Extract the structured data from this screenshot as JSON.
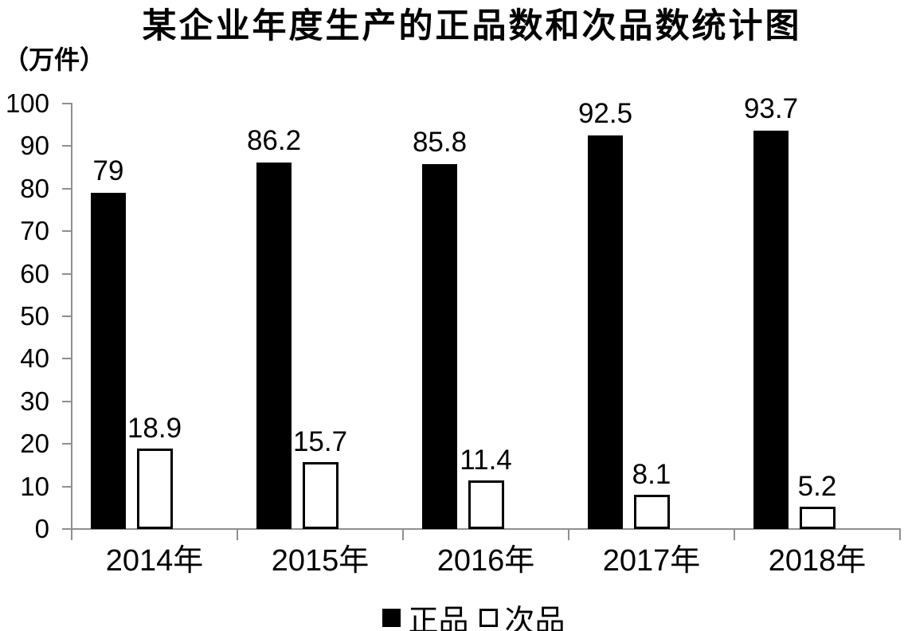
{
  "chart_data": {
    "type": "bar",
    "title": "某企业年度生产的正品数和次品数统计图",
    "unit_label": "（万件）",
    "categories": [
      "2014年",
      "2015年",
      "2016年",
      "2017年",
      "2018年"
    ],
    "series": [
      {
        "name": "正品",
        "style": "solid-black",
        "values": [
          79,
          86.2,
          85.8,
          92.5,
          93.7
        ]
      },
      {
        "name": "次品",
        "style": "white-black-outline",
        "values": [
          18.9,
          15.7,
          11.4,
          8.1,
          5.2
        ]
      }
    ],
    "show_data_labels": true,
    "xlabel": "",
    "ylabel": "",
    "ylim": [
      0,
      100
    ],
    "yticks": [
      0,
      10,
      20,
      30,
      40,
      50,
      60,
      70,
      80,
      90,
      100
    ],
    "grid": false,
    "legend_position": "bottom",
    "colors": {
      "bar_fill": "#000000",
      "bar_outline": "#000000",
      "axis": "#8f8f8f",
      "text": "#000000",
      "background": "#ffffff"
    }
  }
}
